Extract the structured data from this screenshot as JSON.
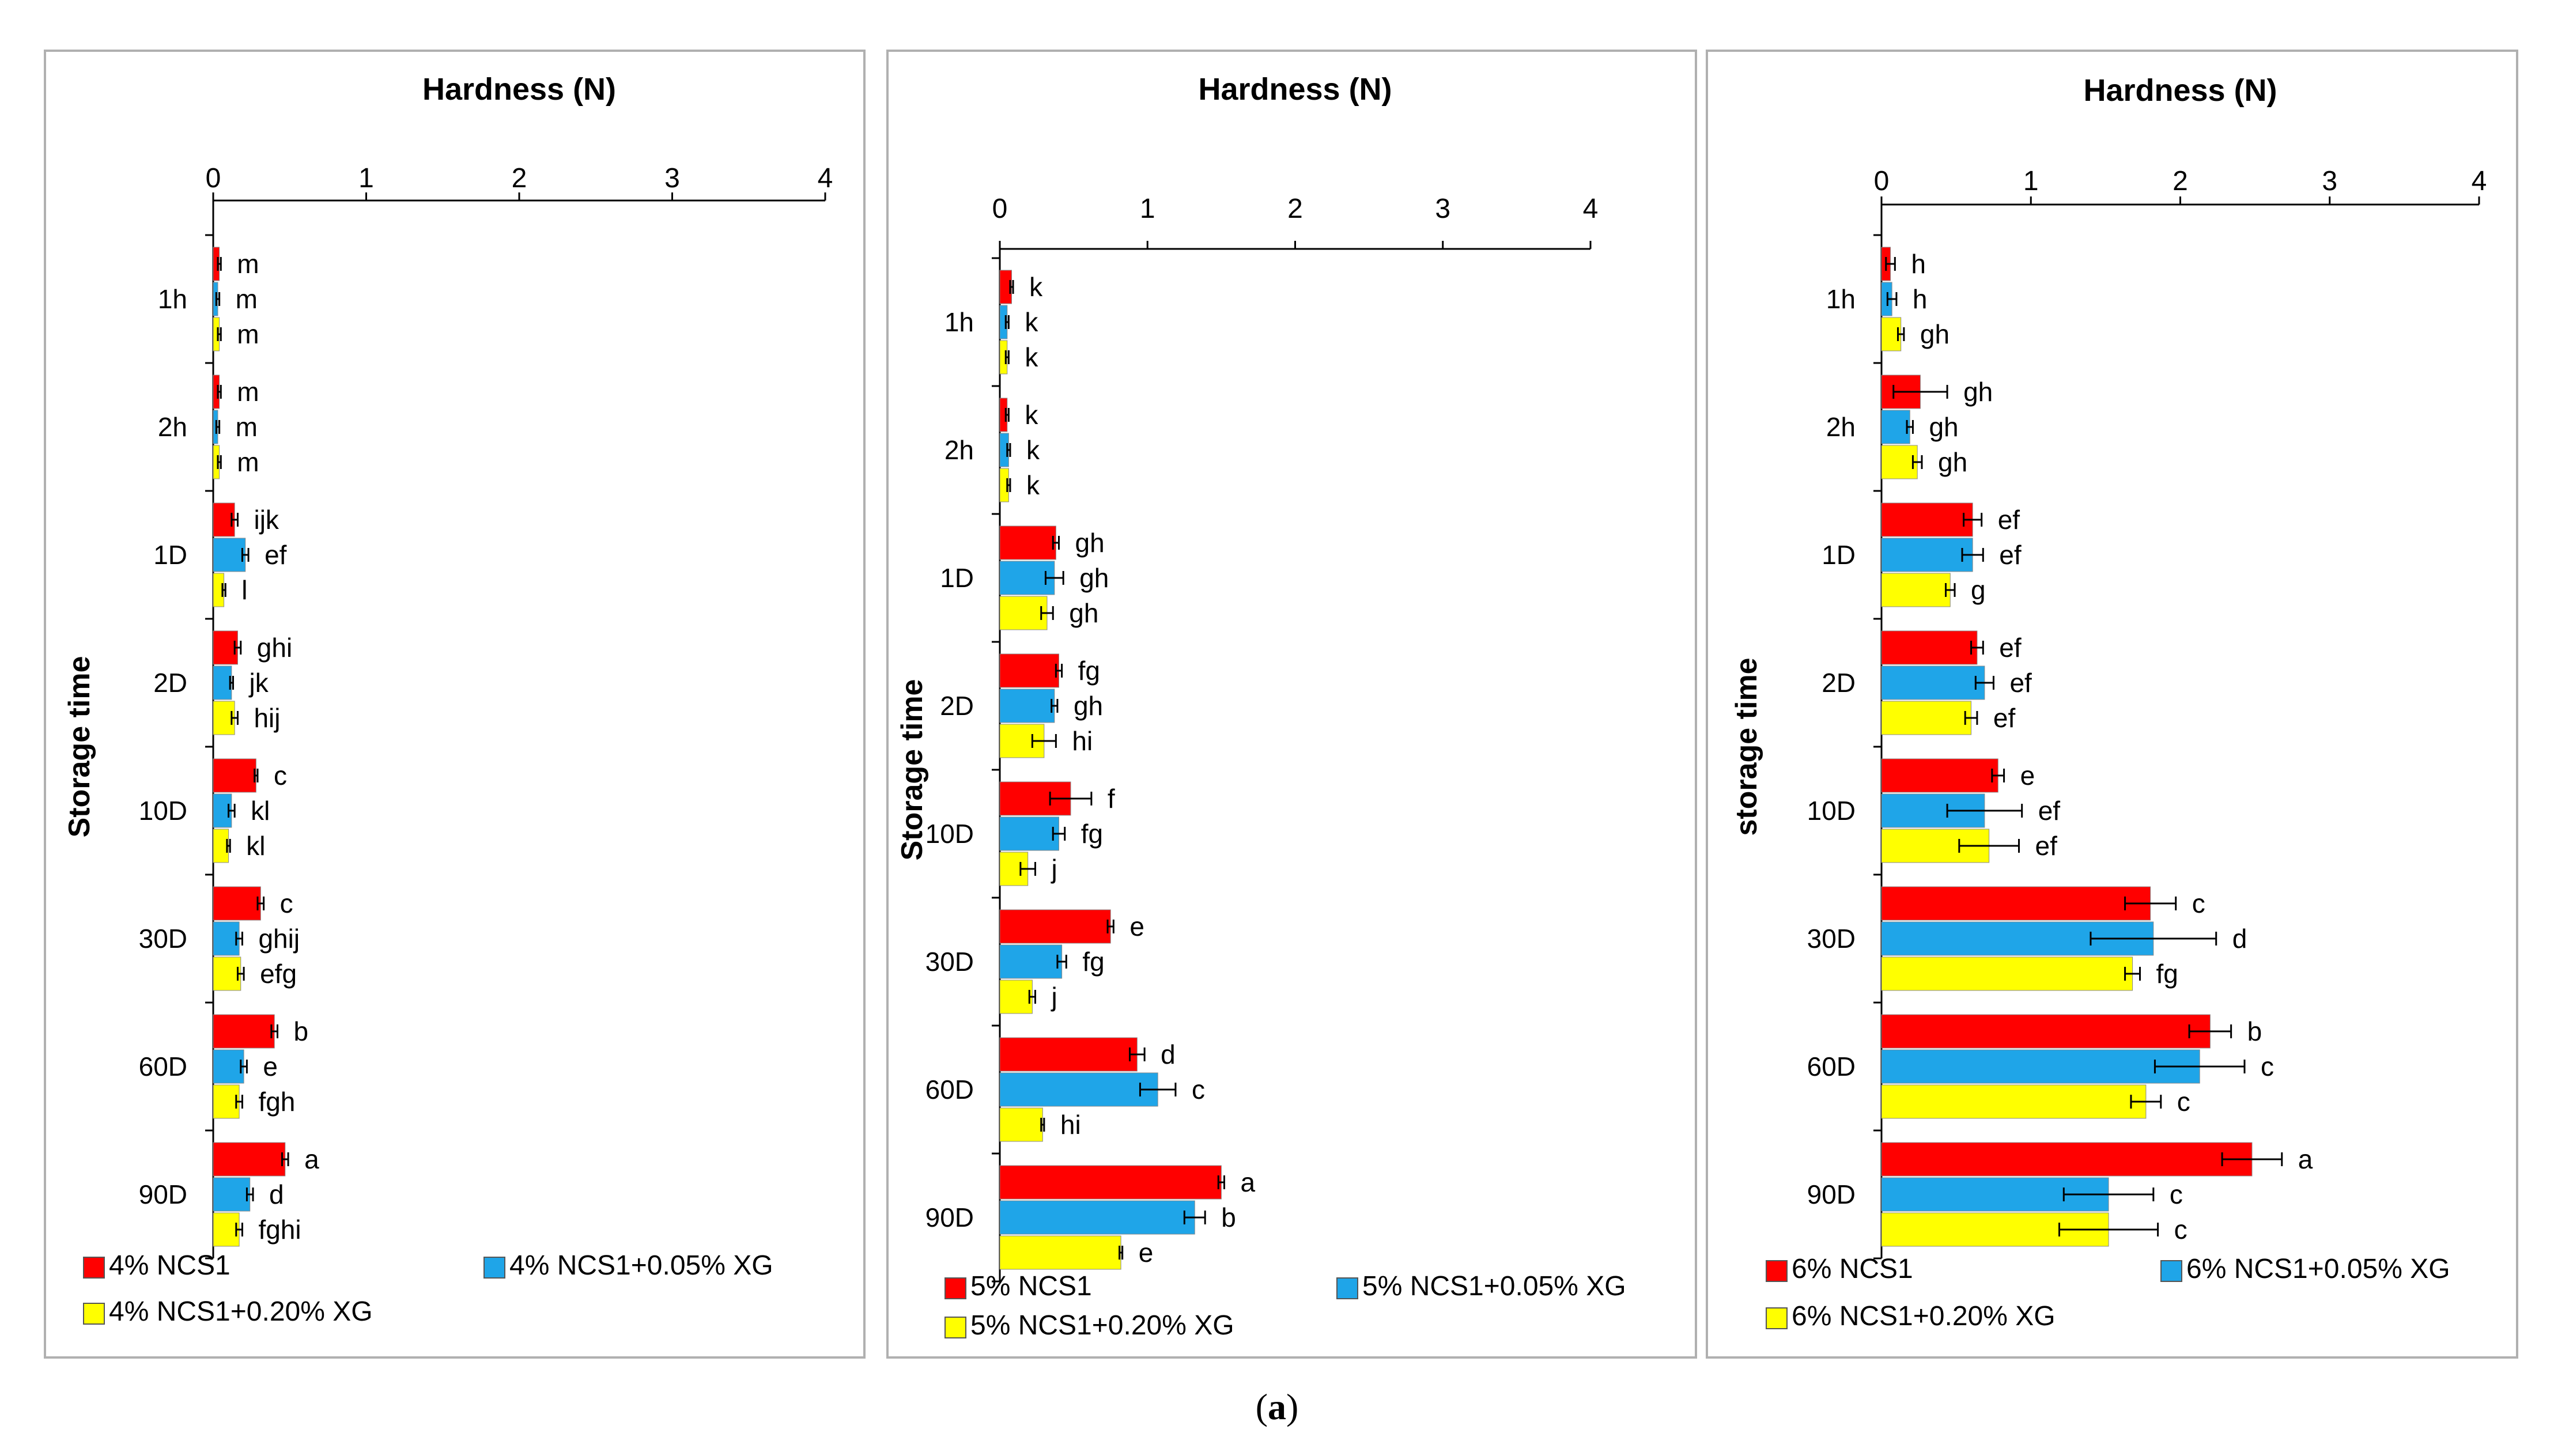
{
  "caption": {
    "open": "(",
    "letter": "a",
    "close": ")"
  },
  "colors": {
    "red": "#ff0000",
    "blue": "#1fa5e8",
    "yellow": "#ffff00",
    "frame": "#b0b0b0",
    "axis": "#000000"
  },
  "chart_data": [
    {
      "type": "bar",
      "orientation": "horizontal",
      "title": "Hardness (N)",
      "ylabel": "Storage time",
      "xlim": [
        0,
        4
      ],
      "xticks": [
        "0",
        "1",
        "2",
        "3",
        "4"
      ],
      "categories": [
        "1h",
        "2h",
        "1D",
        "2D",
        "10D",
        "30D",
        "60D",
        "90D"
      ],
      "series": [
        {
          "name": "4% NCS1",
          "color": "red",
          "values": [
            0.04,
            0.04,
            0.14,
            0.16,
            0.28,
            0.31,
            0.4,
            0.47
          ],
          "errors": [
            0.01,
            0.01,
            0.02,
            0.02,
            0.01,
            0.02,
            0.02,
            0.02
          ],
          "labels": [
            "m",
            "m",
            "ijk",
            "ghi",
            "c",
            "c",
            "b",
            "a"
          ]
        },
        {
          "name": "4% NCS1+0.05% XG",
          "color": "blue",
          "values": [
            0.03,
            0.03,
            0.21,
            0.12,
            0.12,
            0.17,
            0.2,
            0.24
          ],
          "errors": [
            0.01,
            0.01,
            0.02,
            0.01,
            0.02,
            0.02,
            0.02,
            0.02
          ],
          "labels": [
            "m",
            "m",
            "ef",
            "jk",
            "kl",
            "ghij",
            "e",
            "d"
          ]
        },
        {
          "name": "4% NCS1+0.20% XG",
          "color": "yellow",
          "values": [
            0.04,
            0.04,
            0.07,
            0.14,
            0.1,
            0.18,
            0.17,
            0.17
          ],
          "errors": [
            0.01,
            0.01,
            0.01,
            0.02,
            0.01,
            0.02,
            0.02,
            0.02
          ],
          "labels": [
            "m",
            "m",
            "l",
            "hij",
            "kl",
            "efg",
            "fgh",
            "fghi"
          ]
        }
      ]
    },
    {
      "type": "bar",
      "orientation": "horizontal",
      "title": "Hardness (N)",
      "ylabel": "Storage time",
      "xlim": [
        0,
        4
      ],
      "xticks": [
        "0",
        "1",
        "2",
        "3",
        "4"
      ],
      "categories": [
        "1h",
        "2h",
        "1D",
        "2D",
        "10D",
        "30D",
        "60D",
        "90D"
      ],
      "series": [
        {
          "name": "5% NCS1",
          "color": "red",
          "values": [
            0.08,
            0.05,
            0.38,
            0.4,
            0.48,
            0.75,
            0.93,
            1.5
          ],
          "errors": [
            0.01,
            0.01,
            0.02,
            0.02,
            0.14,
            0.02,
            0.05,
            0.02
          ],
          "labels": [
            "k",
            "k",
            "gh",
            "fg",
            "f",
            "e",
            "d",
            "a"
          ]
        },
        {
          "name": "5% NCS1+0.05% XG",
          "color": "blue",
          "values": [
            0.05,
            0.06,
            0.37,
            0.37,
            0.4,
            0.42,
            1.07,
            1.32
          ],
          "errors": [
            0.01,
            0.01,
            0.06,
            0.02,
            0.04,
            0.03,
            0.12,
            0.07
          ],
          "labels": [
            "k",
            "k",
            "gh",
            "gh",
            "fg",
            "fg",
            "c",
            "b"
          ]
        },
        {
          "name": "5% NCS1+0.20% XG",
          "color": "yellow",
          "values": [
            0.05,
            0.06,
            0.32,
            0.3,
            0.19,
            0.22,
            0.29,
            0.82
          ],
          "errors": [
            0.01,
            0.01,
            0.04,
            0.08,
            0.05,
            0.02,
            0.01,
            0.01
          ],
          "labels": [
            "k",
            "k",
            "gh",
            "hi",
            "j",
            "j",
            "hi",
            "e"
          ]
        }
      ]
    },
    {
      "type": "bar",
      "orientation": "horizontal",
      "title": "Hardness (N)",
      "ylabel": "storage time",
      "xlim": [
        0,
        4
      ],
      "xticks": [
        "0",
        "1",
        "2",
        "3",
        "4"
      ],
      "categories": [
        "1h",
        "2h",
        "1D",
        "2D",
        "10D",
        "30D",
        "60D",
        "90D"
      ],
      "series": [
        {
          "name": "6% NCS1",
          "color": "red",
          "values": [
            0.06,
            0.26,
            0.61,
            0.64,
            0.78,
            1.8,
            2.2,
            2.48
          ],
          "errors": [
            0.03,
            0.18,
            0.06,
            0.04,
            0.04,
            0.17,
            0.14,
            0.2
          ],
          "labels": [
            "h",
            "gh",
            "ef",
            "ef",
            "e",
            "c",
            "b",
            "a"
          ]
        },
        {
          "name": "6% NCS1+0.05% XG",
          "color": "blue",
          "values": [
            0.07,
            0.19,
            0.61,
            0.69,
            0.69,
            1.82,
            2.13,
            1.52
          ],
          "errors": [
            0.03,
            0.02,
            0.07,
            0.06,
            0.25,
            0.42,
            0.3,
            0.3
          ],
          "labels": [
            "h",
            "gh",
            "ef",
            "ef",
            "ef",
            "d",
            "c",
            "c"
          ]
        },
        {
          "name": "6% NCS1+0.20% XG",
          "color": "yellow",
          "values": [
            0.13,
            0.24,
            0.46,
            0.6,
            0.72,
            1.68,
            1.77,
            1.52
          ],
          "errors": [
            0.02,
            0.03,
            0.03,
            0.04,
            0.2,
            0.05,
            0.1,
            0.33
          ],
          "labels": [
            "gh",
            "gh",
            "g",
            "ef",
            "ef",
            "fg",
            "c",
            "c"
          ]
        }
      ]
    }
  ]
}
